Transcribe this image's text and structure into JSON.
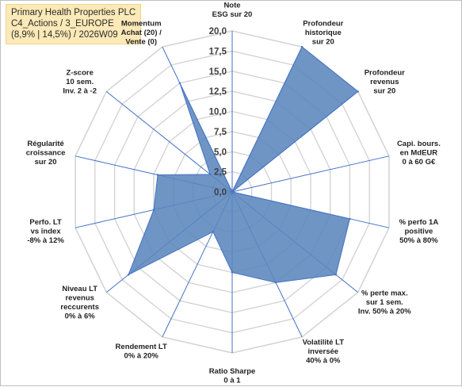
{
  "header": {
    "line1": "Primary Health Properties PLC",
    "line2": "C4_Actions / 3_EUROPE",
    "line3": "(8,9% | 14,5%) / 2026W09"
  },
  "chart_data": {
    "type": "radar",
    "rmin": 0,
    "rmax": 20,
    "tick_step": 2.5,
    "tick_labels": [
      "0,0",
      "2,5",
      "5,0",
      "7,5",
      "10,0",
      "12,5",
      "15,0",
      "17,5",
      "20,0"
    ],
    "fill_color": "#5b86bd",
    "line_color": "#4472c4",
    "axes": [
      {
        "label": [
          "Note",
          "ESG sur 20"
        ],
        "value": 0
      },
      {
        "label": [
          "Profondeur",
          "historique",
          "sur 20"
        ],
        "value": 20
      },
      {
        "label": [
          "Profondeur",
          "revenus",
          "sur 20"
        ],
        "value": 20
      },
      {
        "label": [
          "Capi. bours.",
          "en MdEUR",
          "0 à 60 G€"
        ],
        "value": 0
      },
      {
        "label": [
          "% perfo 1A",
          "positive",
          "50% à 80%"
        ],
        "value": 15
      },
      {
        "label": [
          "% perte max.",
          "sur 1 sem.",
          "Inv. 50% à 20%"
        ],
        "value": 16.5
      },
      {
        "label": [
          "Volatilité LT",
          "inversée",
          "40% à 0%"
        ],
        "value": 12.5
      },
      {
        "label": [
          "Ratio Sharpe",
          "0 à 1"
        ],
        "value": 10
      },
      {
        "label": [
          "Rendement LT",
          "0% à 20%"
        ],
        "value": 5.5
      },
      {
        "label": [
          "Niveau LT",
          "revenus",
          "reccurents",
          "0% à 6%"
        ],
        "value": 16.5
      },
      {
        "label": [
          "Perfo. LT",
          "vs index",
          "-8% à 12%"
        ],
        "value": 10
      },
      {
        "label": [
          "Régularité",
          "croissance",
          "sur 20"
        ],
        "value": 9.5
      },
      {
        "label": [
          "Z-score",
          "10 sem.",
          "Inv. 2 à -2"
        ],
        "value": 3.5
      },
      {
        "label": [
          "Momentum",
          "Achat (20) /",
          "Vente (0)"
        ],
        "value": 15
      }
    ]
  }
}
